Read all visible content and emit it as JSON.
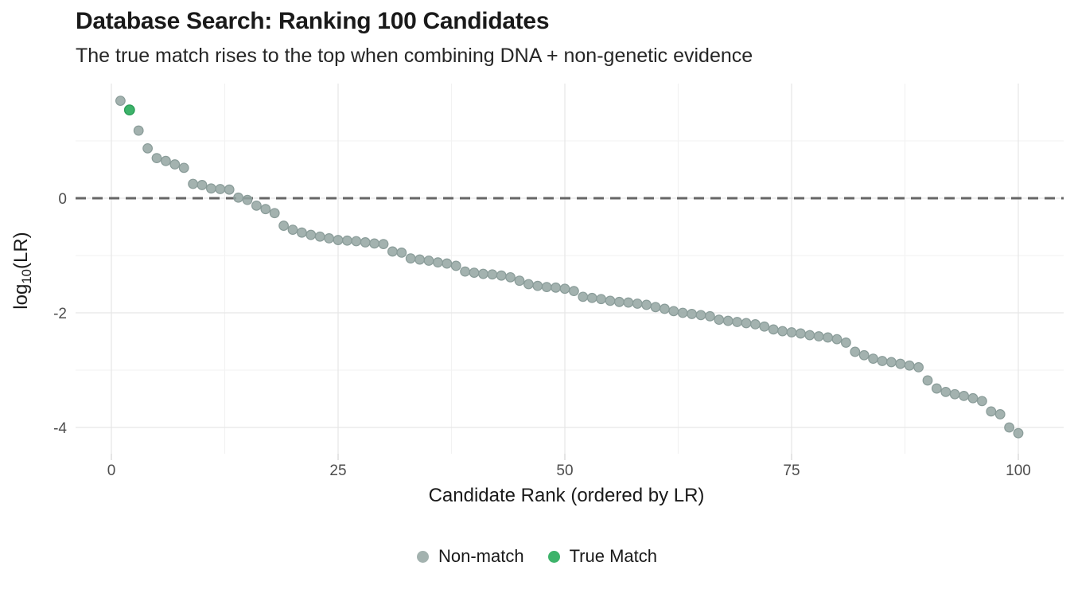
{
  "chart": {
    "title": "Database Search: Ranking 100 Candidates",
    "subtitle": "The true match rises to the top when combining DNA + non-genetic evidence",
    "x_axis_label": "Candidate Rank (ordered by LR)",
    "y_axis": {
      "prefix": "log",
      "sub": "10",
      "suffix": "(LR)"
    },
    "legend": [
      {
        "label": "Non-match",
        "color": "#a3b2af"
      },
      {
        "label": "True Match",
        "color": "#3db36a"
      }
    ]
  },
  "colors": {
    "non_match_fill": "#93a4a1",
    "non_match_stroke": "#8a9c99",
    "true_match_fill": "#3db36a",
    "true_match_stroke": "#2c9e58",
    "reference_line": "#666666",
    "grid_major": "#e7e7e7",
    "grid_minor": "#f2f2f2",
    "axis_tick": "#dcdcdc",
    "tick_text": "#4d4d4d",
    "text": "#1a1a1a"
  },
  "chart_data": {
    "type": "scatter",
    "title": "Database Search: Ranking 100 Candidates",
    "subtitle": "The true match rises to the top when combining DNA + non-genetic evidence",
    "xlabel": "Candidate Rank (ordered by LR)",
    "ylabel": "log10(LR)",
    "xlim": [
      -4,
      105
    ],
    "ylim": [
      -4.45,
      2.0
    ],
    "grid": true,
    "legend_position": "bottom",
    "x_ticks": [
      0,
      25,
      50,
      75,
      100
    ],
    "x_tick_labels": [
      "0",
      "25",
      "50",
      "75",
      "100"
    ],
    "y_ticks": [
      0,
      -2,
      -4
    ],
    "y_tick_labels": [
      "0",
      "-2",
      "-4"
    ],
    "x_minor": [
      12.5,
      37.5,
      62.5,
      87.5
    ],
    "y_minor": [
      1,
      -1,
      -3
    ],
    "reference_line_y": 0,
    "series": [
      {
        "name": "Non-match",
        "points": [
          [
            1,
            1.7
          ],
          [
            3,
            1.18
          ],
          [
            4,
            0.87
          ],
          [
            5,
            0.7
          ],
          [
            6,
            0.65
          ],
          [
            7,
            0.59
          ],
          [
            8,
            0.53
          ],
          [
            9,
            0.25
          ],
          [
            10,
            0.23
          ],
          [
            11,
            0.17
          ],
          [
            12,
            0.16
          ],
          [
            13,
            0.15
          ],
          [
            14,
            0.01
          ],
          [
            15,
            -0.03
          ],
          [
            16,
            -0.13
          ],
          [
            17,
            -0.19
          ],
          [
            18,
            -0.26
          ],
          [
            19,
            -0.48
          ],
          [
            20,
            -0.55
          ],
          [
            21,
            -0.6
          ],
          [
            22,
            -0.64
          ],
          [
            23,
            -0.67
          ],
          [
            24,
            -0.7
          ],
          [
            25,
            -0.73
          ],
          [
            26,
            -0.74
          ],
          [
            27,
            -0.75
          ],
          [
            28,
            -0.77
          ],
          [
            29,
            -0.79
          ],
          [
            30,
            -0.8
          ],
          [
            31,
            -0.93
          ],
          [
            32,
            -0.95
          ],
          [
            33,
            -1.05
          ],
          [
            34,
            -1.07
          ],
          [
            35,
            -1.09
          ],
          [
            36,
            -1.12
          ],
          [
            37,
            -1.14
          ],
          [
            38,
            -1.18
          ],
          [
            39,
            -1.28
          ],
          [
            40,
            -1.3
          ],
          [
            41,
            -1.32
          ],
          [
            42,
            -1.33
          ],
          [
            43,
            -1.35
          ],
          [
            44,
            -1.38
          ],
          [
            45,
            -1.44
          ],
          [
            46,
            -1.5
          ],
          [
            47,
            -1.53
          ],
          [
            48,
            -1.55
          ],
          [
            49,
            -1.56
          ],
          [
            50,
            -1.58
          ],
          [
            51,
            -1.62
          ],
          [
            52,
            -1.72
          ],
          [
            53,
            -1.74
          ],
          [
            54,
            -1.76
          ],
          [
            55,
            -1.79
          ],
          [
            56,
            -1.81
          ],
          [
            57,
            -1.82
          ],
          [
            58,
            -1.84
          ],
          [
            59,
            -1.86
          ],
          [
            60,
            -1.9
          ],
          [
            61,
            -1.93
          ],
          [
            62,
            -1.97
          ],
          [
            63,
            -2.0
          ],
          [
            64,
            -2.02
          ],
          [
            65,
            -2.04
          ],
          [
            66,
            -2.06
          ],
          [
            67,
            -2.12
          ],
          [
            68,
            -2.14
          ],
          [
            69,
            -2.16
          ],
          [
            70,
            -2.18
          ],
          [
            71,
            -2.2
          ],
          [
            72,
            -2.24
          ],
          [
            73,
            -2.29
          ],
          [
            74,
            -2.32
          ],
          [
            75,
            -2.34
          ],
          [
            76,
            -2.36
          ],
          [
            77,
            -2.39
          ],
          [
            78,
            -2.41
          ],
          [
            79,
            -2.43
          ],
          [
            80,
            -2.46
          ],
          [
            81,
            -2.52
          ],
          [
            82,
            -2.68
          ],
          [
            83,
            -2.74
          ],
          [
            84,
            -2.8
          ],
          [
            85,
            -2.84
          ],
          [
            86,
            -2.86
          ],
          [
            87,
            -2.89
          ],
          [
            88,
            -2.92
          ],
          [
            89,
            -2.95
          ],
          [
            90,
            -3.18
          ],
          [
            91,
            -3.32
          ],
          [
            92,
            -3.38
          ],
          [
            93,
            -3.42
          ],
          [
            94,
            -3.45
          ],
          [
            95,
            -3.49
          ],
          [
            96,
            -3.54
          ],
          [
            97,
            -3.72
          ],
          [
            98,
            -3.77
          ],
          [
            99,
            -4.0
          ],
          [
            100,
            -4.1
          ]
        ]
      },
      {
        "name": "True Match",
        "points": [
          [
            2,
            1.54
          ]
        ]
      }
    ]
  }
}
